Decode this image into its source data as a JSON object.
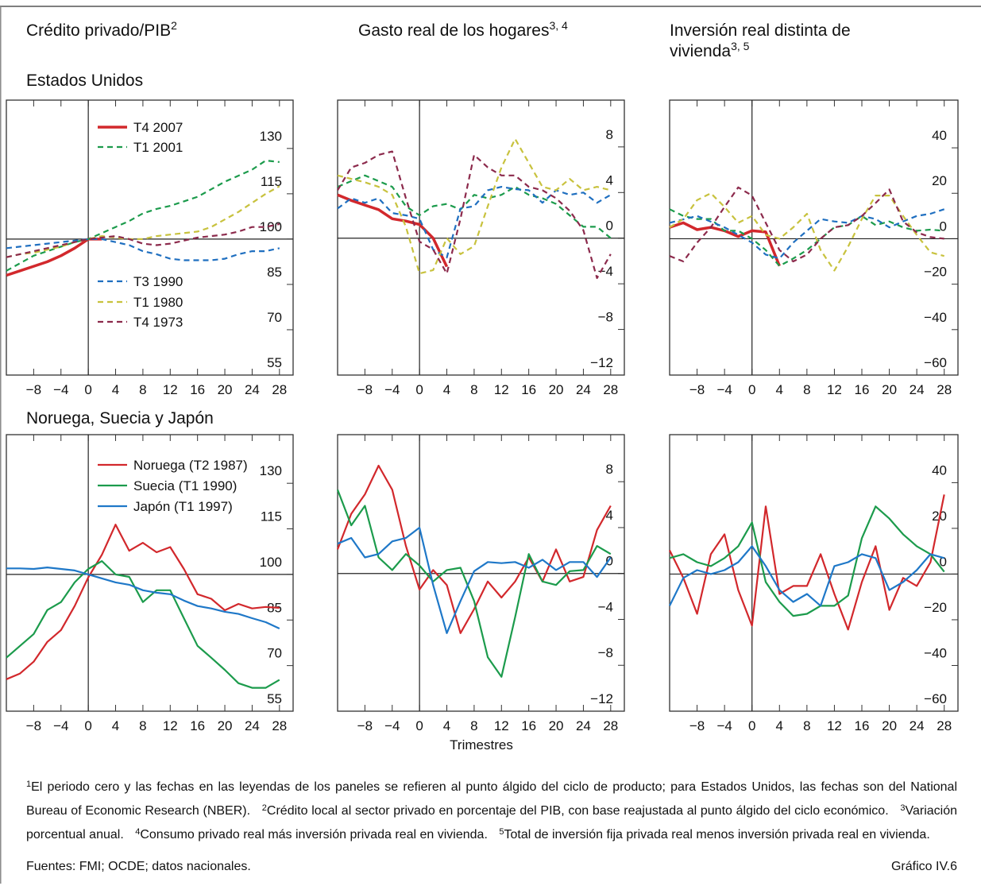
{
  "column_titles": [
    {
      "text": "Crédito privado/PIB",
      "sup": "2"
    },
    {
      "text": "Gasto real de los hogares",
      "sup": "3, 4"
    },
    {
      "text": "Inversión real distinta de vivienda",
      "sup": "3, 5"
    }
  ],
  "row_titles": [
    "Estados Unidos",
    "Noruega, Suecia y Japón"
  ],
  "chart_data": [
    {
      "type": "line",
      "x": [
        -12,
        -10,
        -8,
        -6,
        -4,
        -2,
        0,
        2,
        4,
        6,
        8,
        10,
        12,
        14,
        16,
        18,
        20,
        22,
        24,
        26,
        28
      ],
      "xlim": [
        -12,
        30
      ],
      "xticks": [
        {
          "value": -8,
          "label": "−8"
        },
        {
          "value": -4,
          "label": "−4"
        },
        0,
        4,
        8,
        12,
        16,
        20,
        24,
        28
      ],
      "ylim": [
        55,
        146
      ],
      "yticks": [
        55,
        70,
        85,
        100,
        115,
        130
      ],
      "ref_x": 0,
      "ref_y": 100,
      "legend": true,
      "series": [
        {
          "name": "T4 2007",
          "color": "#d2282c",
          "line_style": "solid",
          "line_width": 3.5,
          "values": [
            88,
            89.5,
            91,
            92.5,
            94.5,
            97,
            100,
            100,
            null,
            null,
            null,
            null,
            null,
            null,
            null,
            null,
            null,
            null,
            null,
            null,
            null
          ]
        },
        {
          "name": "T1 2001",
          "color": "#1c9b4c",
          "line_style": "dashed",
          "line_width": 2.2,
          "values": [
            89.5,
            92,
            94.5,
            96,
            97.5,
            99,
            100,
            102,
            104,
            106,
            108.5,
            110,
            111,
            112.5,
            114,
            116.5,
            119,
            121,
            123,
            126,
            125.5
          ]
        },
        {
          "name": "T3 1990",
          "color": "#1f6fc0",
          "line_style": "dashed",
          "line_width": 2.2,
          "values": [
            97,
            97.5,
            98,
            98.5,
            99,
            99.5,
            100,
            100,
            99,
            98,
            96,
            95,
            93.5,
            93,
            93,
            93,
            93.5,
            95,
            96,
            96,
            97
          ]
        },
        {
          "name": "T1 1980",
          "color": "#c8c23e",
          "line_style": "dashed",
          "line_width": 2.2,
          "values": [
            94,
            95,
            95.5,
            96.5,
            97.5,
            99,
            100,
            101,
            100.5,
            100,
            100,
            101,
            101.5,
            102,
            102.5,
            104,
            106.5,
            109,
            112,
            115,
            117.5
          ]
        },
        {
          "name": "T4 1973",
          "color": "#8c2a4c",
          "line_style": "dashed",
          "line_width": 2.2,
          "values": [
            94,
            95,
            96,
            97,
            98,
            99,
            100,
            100.5,
            101,
            100,
            98.5,
            98,
            98.5,
            99.5,
            100.5,
            101,
            101.5,
            102.5,
            104,
            104,
            105
          ]
        }
      ]
    },
    {
      "type": "line",
      "x": [
        -12,
        -10,
        -8,
        -6,
        -4,
        -2,
        0,
        2,
        4,
        6,
        8,
        10,
        12,
        14,
        16,
        18,
        20,
        22,
        24,
        26,
        28
      ],
      "xlim": [
        -12,
        30
      ],
      "xticks": [
        {
          "value": -8,
          "label": "−8"
        },
        {
          "value": -4,
          "label": "−4"
        },
        0,
        4,
        8,
        12,
        16,
        20,
        24,
        28
      ],
      "ylim": [
        -12,
        12.1
      ],
      "yticks": [
        {
          "value": -12,
          "label": "−12"
        },
        {
          "value": -8,
          "label": "−8"
        },
        {
          "value": -4,
          "label": "−4"
        },
        0,
        4,
        8
      ],
      "ref_x": 0,
      "ref_y": 0,
      "series": [
        {
          "color": "#d2282c",
          "line_style": "solid",
          "line_width": 3.5,
          "values": [
            3.8,
            3.3,
            2.9,
            2.5,
            1.7,
            1.5,
            1.2,
            0,
            -2.5,
            null,
            null,
            null,
            null,
            null,
            null,
            null,
            null,
            null,
            null,
            null,
            null
          ]
        },
        {
          "color": "#1c9b4c",
          "line_style": "dashed",
          "line_width": 2.2,
          "values": [
            4.5,
            5,
            5.5,
            5,
            4.5,
            2.8,
            2,
            2.8,
            3,
            2.5,
            3.8,
            3.5,
            3.8,
            4.5,
            3.8,
            3.5,
            3,
            2,
            1,
            1,
            0
          ]
        },
        {
          "color": "#1f6fc0",
          "line_style": "dashed",
          "line_width": 2.2,
          "values": [
            2.6,
            3.5,
            3.1,
            3.5,
            2.2,
            2,
            1.7,
            -1,
            -1.7,
            2.6,
            2.8,
            4.2,
            4.5,
            4.3,
            4.2,
            3.1,
            4.2,
            3.8,
            4,
            3.1,
            3.8
          ]
        },
        {
          "color": "#c8c23e",
          "line_style": "dashed",
          "line_width": 2.2,
          "values": [
            5.5,
            5.2,
            4.9,
            4.5,
            3.8,
            1,
            -3.1,
            -2.8,
            0,
            -1.4,
            -0.7,
            2.8,
            6.2,
            8.7,
            6.6,
            4.5,
            4.2,
            5.2,
            4.2,
            4.5,
            4.2
          ]
        },
        {
          "color": "#8c2a4c",
          "line_style": "dashed",
          "line_width": 2.2,
          "values": [
            4.2,
            6.2,
            6.6,
            7.3,
            7.6,
            3.5,
            -0.3,
            -1,
            -3.1,
            1.7,
            7.3,
            6.2,
            5.5,
            5.5,
            4.5,
            4.2,
            3.5,
            2.4,
            0.7,
            -3.5,
            -1.4
          ]
        }
      ]
    },
    {
      "type": "line",
      "x": [
        -12,
        -10,
        -8,
        -6,
        -4,
        -2,
        0,
        2,
        4,
        6,
        8,
        10,
        12,
        14,
        16,
        18,
        20,
        22,
        24,
        26,
        28
      ],
      "xlim": [
        -12,
        30
      ],
      "xticks": [
        {
          "value": -8,
          "label": "−8"
        },
        {
          "value": -4,
          "label": "−4"
        },
        0,
        4,
        8,
        12,
        16,
        20,
        24,
        28
      ],
      "ylim": [
        -60,
        61
      ],
      "yticks": [
        {
          "value": -60,
          "label": "−60"
        },
        {
          "value": -40,
          "label": "−40"
        },
        {
          "value": -20,
          "label": "−20"
        },
        0,
        20,
        40
      ],
      "ref_x": 0,
      "ref_y": 0,
      "series": [
        {
          "color": "#d2282c",
          "line_style": "solid",
          "line_width": 3.5,
          "values": [
            5,
            7,
            4,
            5,
            3.5,
            1,
            3.5,
            3,
            -12,
            null,
            null,
            null,
            null,
            null,
            null,
            null,
            null,
            null,
            null,
            null,
            null
          ]
        },
        {
          "color": "#1c9b4c",
          "line_style": "dashed",
          "line_width": 2.2,
          "values": [
            13,
            10,
            8.7,
            8.7,
            3.5,
            3.5,
            0,
            -5,
            -12,
            -8.7,
            -5,
            0,
            5,
            6,
            10,
            6,
            7.6,
            5,
            3.5,
            4,
            3.5
          ]
        },
        {
          "color": "#1f6fc0",
          "line_style": "dashed",
          "line_width": 2.2,
          "values": [
            7,
            8.5,
            10,
            7.5,
            5,
            1.7,
            -1.7,
            -7,
            -8.7,
            -1.7,
            3.5,
            8.7,
            7.6,
            7,
            10,
            8.7,
            5,
            7.6,
            10,
            11,
            13
          ]
        },
        {
          "color": "#c8c23e",
          "line_style": "dashed",
          "line_width": 2.2,
          "values": [
            5,
            8.7,
            17,
            20,
            14,
            7,
            10,
            1.7,
            0,
            5,
            11,
            -5,
            -14,
            -3.5,
            8.7,
            19,
            19,
            10,
            1.7,
            -6,
            -7.6
          ]
        },
        {
          "color": "#8c2a4c",
          "line_style": "dashed",
          "line_width": 2.2,
          "values": [
            -7.6,
            -10,
            -1.7,
            5,
            14,
            22.6,
            19,
            7,
            -5,
            -10,
            -7,
            0,
            5,
            6,
            10,
            15.7,
            21.7,
            7.6,
            2.8,
            0.7,
            0
          ]
        }
      ]
    },
    {
      "type": "line",
      "x": [
        -12,
        -10,
        -8,
        -6,
        -4,
        -2,
        0,
        2,
        4,
        6,
        8,
        10,
        12,
        14,
        16,
        18,
        20,
        22,
        24,
        26,
        28
      ],
      "xlim": [
        -12,
        30
      ],
      "xticks": [
        {
          "value": -8,
          "label": "−8"
        },
        {
          "value": -4,
          "label": "−4"
        },
        0,
        4,
        8,
        12,
        16,
        20,
        24,
        28
      ],
      "ylim": [
        55,
        146
      ],
      "yticks": [
        55,
        70,
        85,
        100,
        115,
        130
      ],
      "ref_x": 0,
      "ref_y": 100,
      "legend": true,
      "series": [
        {
          "name": "Noruega (T2 1987)",
          "color": "#d2282c",
          "line_style": "solid",
          "line_width": 2.2,
          "values": [
            65.5,
            67.4,
            71.3,
            77.8,
            81.7,
            89.6,
            99,
            106.5,
            116.4,
            107.8,
            110.4,
            107.3,
            109,
            101.8,
            93.5,
            92,
            88.2,
            90.3,
            88.8,
            89.3,
            89
          ]
        },
        {
          "name": "Suecia (T1 1990)",
          "color": "#1c9b4c",
          "line_style": "solid",
          "line_width": 2.2,
          "values": [
            72.6,
            76.5,
            80.4,
            88.3,
            90.9,
            97.4,
            101.8,
            104.4,
            100,
            99.2,
            90.9,
            94.8,
            94.8,
            85.6,
            76.5,
            72.6,
            68.6,
            64.2,
            62.7,
            62.7,
            65.3
          ]
        },
        {
          "name": "Japón (T1 1997)",
          "color": "#1f78c8",
          "line_style": "solid",
          "line_width": 2.2,
          "values": [
            102,
            102,
            101.8,
            102.3,
            101.8,
            101.3,
            100,
            98.7,
            97.4,
            96.6,
            94.8,
            94,
            93.5,
            91.4,
            89.6,
            88.8,
            87.7,
            87,
            85.6,
            84.3,
            82.2
          ]
        }
      ]
    },
    {
      "type": "line",
      "x": [
        -12,
        -10,
        -8,
        -6,
        -4,
        -2,
        0,
        2,
        4,
        6,
        8,
        10,
        12,
        14,
        16,
        18,
        20,
        22,
        24,
        26,
        28
      ],
      "xlim": [
        -12,
        30
      ],
      "xticks": [
        {
          "value": -8,
          "label": "−8"
        },
        {
          "value": -4,
          "label": "−4"
        },
        0,
        4,
        8,
        12,
        16,
        20,
        24,
        28
      ],
      "ylim": [
        -12,
        12.1
      ],
      "yticks": [
        {
          "value": -12,
          "label": "−12"
        },
        {
          "value": -8,
          "label": "−8"
        },
        {
          "value": -4,
          "label": "−4"
        },
        0,
        4,
        8
      ],
      "ref_x": 0,
      "ref_y": 0,
      "series": [
        {
          "color": "#d2282c",
          "line_style": "solid",
          "line_width": 2.2,
          "values": [
            2.1,
            5.2,
            6.9,
            9.4,
            7.3,
            2.4,
            -1.4,
            0.3,
            -1,
            -5.2,
            -3.1,
            -0.7,
            -2.1,
            -0.7,
            1.4,
            -0.7,
            2.1,
            -0.7,
            -0.3,
            3.8,
            5.9
          ]
        },
        {
          "color": "#1c9b4c",
          "line_style": "solid",
          "line_width": 2.2,
          "values": [
            7.3,
            4.2,
            5.9,
            1.4,
            0.3,
            1.7,
            0.7,
            -0.7,
            0.3,
            0.5,
            -2.4,
            -7.3,
            -9,
            -3.8,
            1.7,
            -0.7,
            -1,
            0.2,
            0.3,
            2.4,
            1.7
          ]
        },
        {
          "color": "#1f78c8",
          "line_style": "solid",
          "line_width": 2.2,
          "values": [
            2.6,
            3.1,
            1.4,
            1.7,
            2.8,
            3.1,
            4,
            -1,
            -5.2,
            -2.4,
            0.2,
            1,
            0.9,
            1,
            0.5,
            1.2,
            0.3,
            1,
            1,
            -0.3,
            1.4
          ]
        }
      ]
    },
    {
      "type": "line",
      "x": [
        -12,
        -10,
        -8,
        -6,
        -4,
        -2,
        0,
        2,
        4,
        6,
        8,
        10,
        12,
        14,
        16,
        18,
        20,
        22,
        24,
        26,
        28
      ],
      "xlim": [
        -12,
        30
      ],
      "xticks": [
        {
          "value": -8,
          "label": "−8"
        },
        {
          "value": -4,
          "label": "−4"
        },
        0,
        4,
        8,
        12,
        16,
        20,
        24,
        28
      ],
      "ylim": [
        -60,
        61
      ],
      "yticks": [
        {
          "value": -60,
          "label": "−60"
        },
        {
          "value": -40,
          "label": "−40"
        },
        {
          "value": -20,
          "label": "−20"
        },
        0,
        20,
        40
      ],
      "ref_x": 0,
      "ref_y": 0,
      "series": [
        {
          "color": "#d2282c",
          "line_style": "solid",
          "line_width": 2.2,
          "values": [
            10.4,
            -1.7,
            -17.4,
            8.7,
            17.4,
            -7,
            -22.6,
            29.6,
            -8.7,
            -5.2,
            -5.2,
            8.7,
            -8.7,
            -24.3,
            -3.5,
            12.2,
            -15.7,
            -1.7,
            -5.2,
            5.2,
            34.8
          ]
        },
        {
          "color": "#1c9b4c",
          "line_style": "solid",
          "line_width": 2.2,
          "values": [
            7,
            8.7,
            5.2,
            3.5,
            7,
            12.2,
            22.6,
            -3.5,
            -12.2,
            -18.3,
            -17.4,
            -13.9,
            -13.9,
            -9.4,
            15.7,
            29.6,
            24.3,
            17.4,
            12.2,
            8.7,
            1
          ]
        },
        {
          "color": "#1f78c8",
          "line_style": "solid",
          "line_width": 2.2,
          "values": [
            -13.9,
            -1.7,
            1.7,
            0,
            1.7,
            5.2,
            12.2,
            3.5,
            -7,
            -12.2,
            -8.7,
            -13.9,
            3.5,
            5.2,
            8.7,
            7,
            -7,
            -3.5,
            1.7,
            8.7,
            7
          ]
        }
      ]
    }
  ],
  "x_label": "Trimestres",
  "footnotes": [
    {
      "num": "1",
      "text": "El periodo cero y las fechas en las leyendas de los paneles se refieren al punto álgido del ciclo de producto; para Estados Unidos, las fechas son del National Bureau of Economic Research (NBER)."
    },
    {
      "num": "2",
      "text": "Crédito local al sector privado en porcentaje del PIB, con base reajustada al punto álgido del ciclo económico."
    },
    {
      "num": "3",
      "text": "Variación porcentual anual."
    },
    {
      "num": "4",
      "text": "Consumo privado real más inversión privada real en vivienda."
    },
    {
      "num": "5",
      "text": "Total de inversión fija privada real menos inversión privada real en vivienda."
    }
  ],
  "sources": "Fuentes: FMI; OCDE; datos nacionales.",
  "figure_id": "Gráfico IV.6"
}
